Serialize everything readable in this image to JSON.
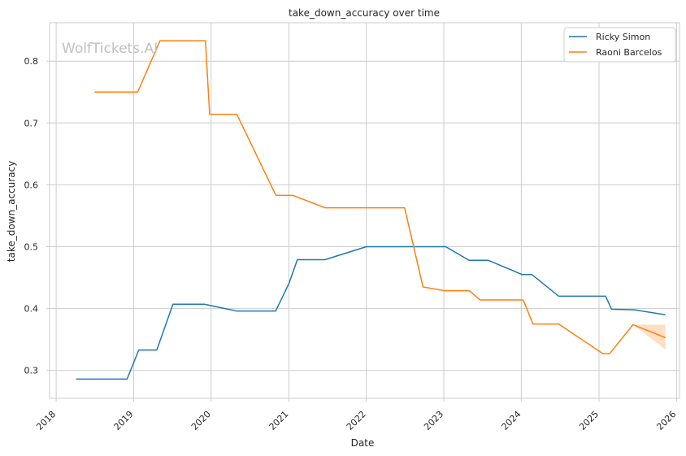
{
  "watermark": "WolfTickets.AI",
  "chart_data": {
    "type": "line",
    "title": "take_down_accuracy over time",
    "xlabel": "Date",
    "ylabel": "take_down_accuracy",
    "xlim": [
      "2017-12-01",
      "2026-01-15"
    ],
    "ylim": [
      0.255,
      0.862
    ],
    "x_ticks": [
      "2018",
      "2019",
      "2020",
      "2021",
      "2022",
      "2023",
      "2024",
      "2025",
      "2026"
    ],
    "y_ticks": [
      "0.3",
      "0.4",
      "0.5",
      "0.6",
      "0.7",
      "0.8"
    ],
    "grid": true,
    "legend_position": "top-right",
    "series": [
      {
        "name": "Ricky Simon",
        "color": "#1f77b4",
        "points": [
          [
            "2018-04-05",
            0.286
          ],
          [
            "2018-12-01",
            0.286
          ],
          [
            "2019-01-25",
            0.333
          ],
          [
            "2019-04-20",
            0.333
          ],
          [
            "2019-07-05",
            0.407
          ],
          [
            "2019-12-01",
            0.407
          ],
          [
            "2020-05-01",
            0.396
          ],
          [
            "2020-10-31",
            0.396
          ],
          [
            "2021-01-02",
            0.441
          ],
          [
            "2021-02-10",
            0.479
          ],
          [
            "2021-06-20",
            0.479
          ],
          [
            "2022-01-01",
            0.5
          ],
          [
            "2023-01-10",
            0.5
          ],
          [
            "2023-04-30",
            0.478
          ],
          [
            "2023-07-30",
            0.478
          ],
          [
            "2024-01-05",
            0.455
          ],
          [
            "2024-02-20",
            0.455
          ],
          [
            "2024-06-25",
            0.42
          ],
          [
            "2025-02-01",
            0.42
          ],
          [
            "2025-03-01",
            0.399
          ],
          [
            "2025-06-15",
            0.398
          ],
          [
            "2025-11-10",
            0.39
          ]
        ]
      },
      {
        "name": "Raoni Barcelos",
        "color": "#ff7f0e",
        "points": [
          [
            "2018-07-01",
            0.75
          ],
          [
            "2019-01-20",
            0.75
          ],
          [
            "2019-05-05",
            0.833
          ],
          [
            "2019-12-05",
            0.833
          ],
          [
            "2019-12-25",
            0.714
          ],
          [
            "2020-05-01",
            0.714
          ],
          [
            "2020-11-01",
            0.583
          ],
          [
            "2021-01-20",
            0.583
          ],
          [
            "2021-06-20",
            0.563
          ],
          [
            "2022-06-30",
            0.563
          ],
          [
            "2022-09-25",
            0.435
          ],
          [
            "2023-01-01",
            0.429
          ],
          [
            "2023-05-01",
            0.429
          ],
          [
            "2023-06-20",
            0.414
          ],
          [
            "2024-01-10",
            0.414
          ],
          [
            "2024-02-25",
            0.375
          ],
          [
            "2024-06-25",
            0.375
          ],
          [
            "2025-01-20",
            0.327
          ],
          [
            "2025-02-20",
            0.327
          ],
          [
            "2025-06-10",
            0.374
          ],
          [
            "2025-11-10",
            0.353
          ]
        ],
        "band": [
          [
            "2025-06-10",
            0.374,
            0.374
          ],
          [
            "2025-11-10",
            0.334,
            0.374
          ]
        ]
      }
    ]
  }
}
